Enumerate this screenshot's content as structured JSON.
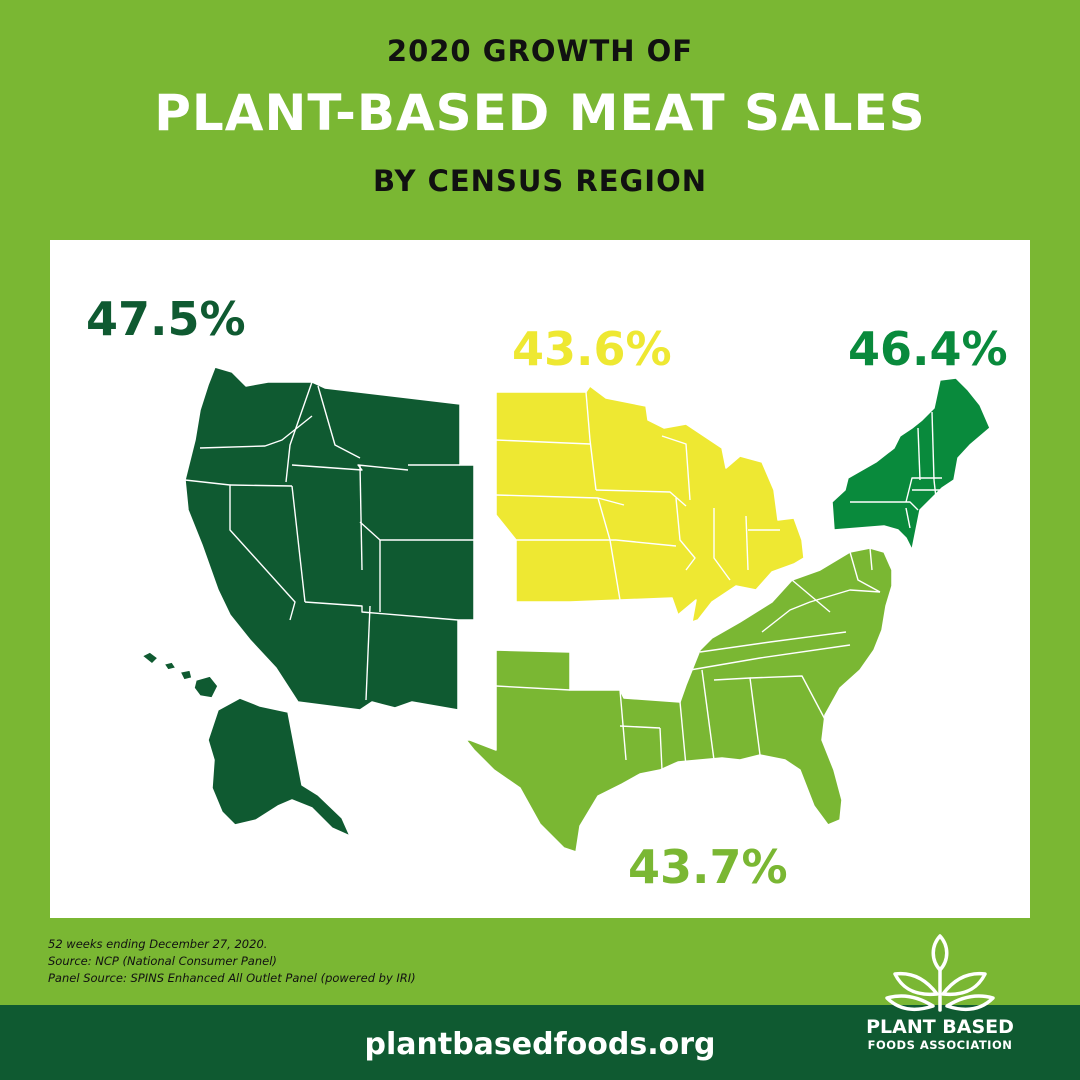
{
  "title": {
    "line1": "2020 GROWTH OF",
    "line2": "PLANT-BASED MEAT SALES",
    "line3": "BY CENSUS REGION"
  },
  "regions": [
    {
      "name": "West",
      "value": "47.5%",
      "color": "#0f5a31"
    },
    {
      "name": "Midwest",
      "value": "43.6%",
      "color": "#eee832"
    },
    {
      "name": "Northeast",
      "value": "46.4%",
      "color": "#098a3c"
    },
    {
      "name": "South",
      "value": "43.7%",
      "color": "#7ab733"
    }
  ],
  "notes": [
    "52 weeks ending December 27, 2020.",
    "Source: NCP (National Consumer Panel)",
    "Panel Source: SPINS Enhanced All Outlet Panel (powered by IRI)"
  ],
  "footer": {
    "url": "plantbasedfoods.org",
    "logo_name": "PLANT BASED",
    "logo_sub": "FOODS ASSOCIATION"
  },
  "colors": {
    "background": "#7ab733",
    "footer_band": "#0f5a31",
    "panel": "#ffffff"
  }
}
